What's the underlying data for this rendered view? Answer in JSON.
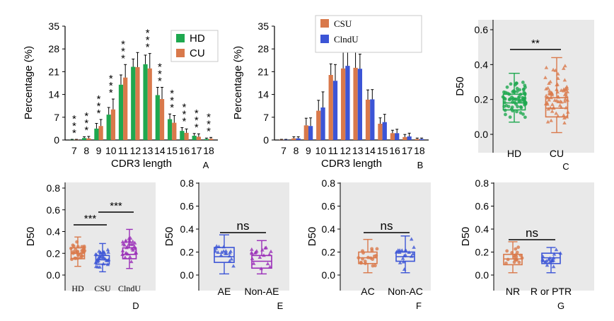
{
  "colors": {
    "green": "#1ea84f",
    "orange": "#d9794b",
    "blue": "#3c55d6",
    "purple": "#9a2db8",
    "panel_bg": "#e9e9e9",
    "axis": "#000000"
  },
  "chart_data": [
    {
      "id": "A",
      "type": "bar",
      "panel_label": "A",
      "xlabel": "CDR3 length",
      "ylabel": "Percentage (%)",
      "ylim": [
        0,
        35
      ],
      "yticks": [
        "0",
        "7",
        "14",
        "21",
        "28",
        "35"
      ],
      "categories": [
        "7",
        "8",
        "9",
        "10",
        "11",
        "12",
        "13",
        "14",
        "15",
        "16",
        "17",
        "18"
      ],
      "series": [
        {
          "name": "HD",
          "color_key": "green",
          "values": [
            0.1,
            0.6,
            3.5,
            7.8,
            17.0,
            22.5,
            23.3,
            13.8,
            6.4,
            2.8,
            1.3,
            0.3
          ],
          "err": [
            0.1,
            0.4,
            1.6,
            2.2,
            3.0,
            2.4,
            2.8,
            2.4,
            1.6,
            1.0,
            0.7,
            0.3
          ]
        },
        {
          "name": "CU",
          "color_key": "orange",
          "values": [
            0.1,
            0.5,
            4.3,
            9.4,
            19.2,
            22.4,
            22.0,
            12.6,
            5.3,
            2.2,
            1.0,
            0.4
          ],
          "err": [
            0.1,
            0.6,
            2.0,
            3.2,
            4.0,
            4.5,
            4.6,
            3.6,
            2.2,
            1.2,
            0.9,
            0.4
          ]
        }
      ],
      "significance": [
        "* * *",
        "* * *",
        "* * *",
        "* * *",
        "* * *",
        "",
        "* * *",
        "* * *",
        "* * *",
        "* * *",
        "* * *",
        "* * *"
      ],
      "legend": {
        "placement": "top-right",
        "entries": [
          "HD",
          "CU"
        ]
      }
    },
    {
      "id": "B",
      "type": "bar",
      "panel_label": "B",
      "xlabel": "CDR3 length",
      "ylabel": "Percentage (%)",
      "ylim": [
        0,
        35
      ],
      "yticks": [
        "0",
        "7",
        "14",
        "21",
        "28",
        "35"
      ],
      "categories": [
        "7",
        "8",
        "9",
        "10",
        "11",
        "12",
        "13",
        "14",
        "15",
        "16",
        "17",
        "18"
      ],
      "series": [
        {
          "name": "CSU",
          "color_key": "orange",
          "values": [
            0.1,
            0.5,
            4.5,
            9.0,
            20.0,
            22.0,
            22.2,
            12.4,
            5.0,
            2.1,
            0.9,
            0.3
          ],
          "err": [
            0.1,
            0.5,
            2.2,
            3.2,
            3.4,
            5.0,
            4.8,
            3.0,
            1.8,
            0.9,
            0.8,
            0.3
          ]
        },
        {
          "name": "ClndU",
          "color_key": "blue",
          "values": [
            0.1,
            0.5,
            4.3,
            10.0,
            18.2,
            22.8,
            21.9,
            12.5,
            5.5,
            2.1,
            1.1,
            0.3
          ],
          "err": [
            0.1,
            0.5,
            2.5,
            4.8,
            5.0,
            4.8,
            4.5,
            3.0,
            2.4,
            1.2,
            1.0,
            0.3
          ]
        }
      ],
      "legend": {
        "placement": "top-right",
        "entries": [
          "CSU",
          "ClndU"
        ]
      }
    },
    {
      "id": "C",
      "type": "boxplot",
      "panel_label": "C",
      "ylabel": "D50",
      "ylim": [
        0,
        0.6
      ],
      "yticks": [
        "0.0",
        "0.2",
        "0.4",
        "0.6"
      ],
      "groups": [
        {
          "name": "HD",
          "color_key": "green",
          "q1": 0.14,
          "median": 0.18,
          "q3": 0.23,
          "whisker_low": 0.07,
          "whisker_high": 0.35
        },
        {
          "name": "CU",
          "color_key": "orange",
          "q1": 0.1,
          "median": 0.15,
          "q3": 0.21,
          "whisker_low": 0.01,
          "whisker_high": 0.44
        }
      ],
      "comparisons": [
        {
          "label": "**",
          "from": 0,
          "to": 1
        }
      ]
    },
    {
      "id": "D",
      "type": "boxplot",
      "panel_label": "D",
      "ylabel": "D50",
      "ylim": [
        0,
        0.8
      ],
      "yticks": [
        "0.0",
        "0.2",
        "0.4",
        "0.6",
        "0.8"
      ],
      "groups": [
        {
          "name": "HD",
          "color_key": "orange",
          "q1": 0.15,
          "median": 0.2,
          "q3": 0.25,
          "whisker_low": 0.08,
          "whisker_high": 0.35
        },
        {
          "name": "CSU",
          "color_key": "blue",
          "q1": 0.1,
          "median": 0.14,
          "q3": 0.18,
          "whisker_low": 0.03,
          "whisker_high": 0.29
        },
        {
          "name": "ClndU",
          "color_key": "purple",
          "q1": 0.15,
          "median": 0.19,
          "q3": 0.25,
          "whisker_low": 0.06,
          "whisker_high": 0.42
        }
      ],
      "comparisons": [
        {
          "label": "***",
          "from": 0,
          "to": 1
        },
        {
          "label": "***",
          "from": 1,
          "to": 2
        }
      ]
    },
    {
      "id": "E",
      "type": "boxplot",
      "panel_label": "E",
      "ylabel": "D50",
      "ylim": [
        0,
        0.8
      ],
      "yticks": [
        "0.0",
        "0.2",
        "0.4",
        "0.6",
        "0.8"
      ],
      "groups": [
        {
          "name": "AE",
          "color_key": "blue",
          "q1": 0.11,
          "median": 0.16,
          "q3": 0.24,
          "whisker_low": 0.01,
          "whisker_high": 0.35
        },
        {
          "name": "Non-AE",
          "color_key": "purple",
          "q1": 0.06,
          "median": 0.12,
          "q3": 0.17,
          "whisker_low": 0.01,
          "whisker_high": 0.3
        }
      ],
      "comparisons": [
        {
          "label": "ns",
          "from": 0,
          "to": 1
        }
      ]
    },
    {
      "id": "F",
      "type": "boxplot",
      "panel_label": "F",
      "ylabel": "D50",
      "ylim": [
        0,
        0.8
      ],
      "yticks": [
        "0.0",
        "0.2",
        "0.4",
        "0.6",
        "0.8"
      ],
      "groups": [
        {
          "name": "AC",
          "color_key": "orange",
          "q1": 0.1,
          "median": 0.15,
          "q3": 0.2,
          "whisker_low": 0.02,
          "whisker_high": 0.31
        },
        {
          "name": "Non-AC",
          "color_key": "blue",
          "q1": 0.12,
          "median": 0.16,
          "q3": 0.2,
          "whisker_low": 0.02,
          "whisker_high": 0.34
        }
      ],
      "comparisons": [
        {
          "label": "ns",
          "from": 0,
          "to": 1
        }
      ]
    },
    {
      "id": "G",
      "type": "boxplot",
      "panel_label": "G",
      "ylabel": "D50",
      "ylim": [
        0,
        0.8
      ],
      "yticks": [
        "0.0",
        "0.2",
        "0.4",
        "0.6",
        "0.8"
      ],
      "groups": [
        {
          "name": "NR",
          "color_key": "orange",
          "q1": 0.09,
          "median": 0.14,
          "q3": 0.18,
          "whisker_low": 0.02,
          "whisker_high": 0.29
        },
        {
          "name": "R or PTR",
          "color_key": "blue",
          "q1": 0.1,
          "median": 0.15,
          "q3": 0.19,
          "whisker_low": 0.02,
          "whisker_high": 0.24
        }
      ],
      "comparisons": [
        {
          "label": "ns",
          "from": 0,
          "to": 1
        }
      ]
    }
  ]
}
